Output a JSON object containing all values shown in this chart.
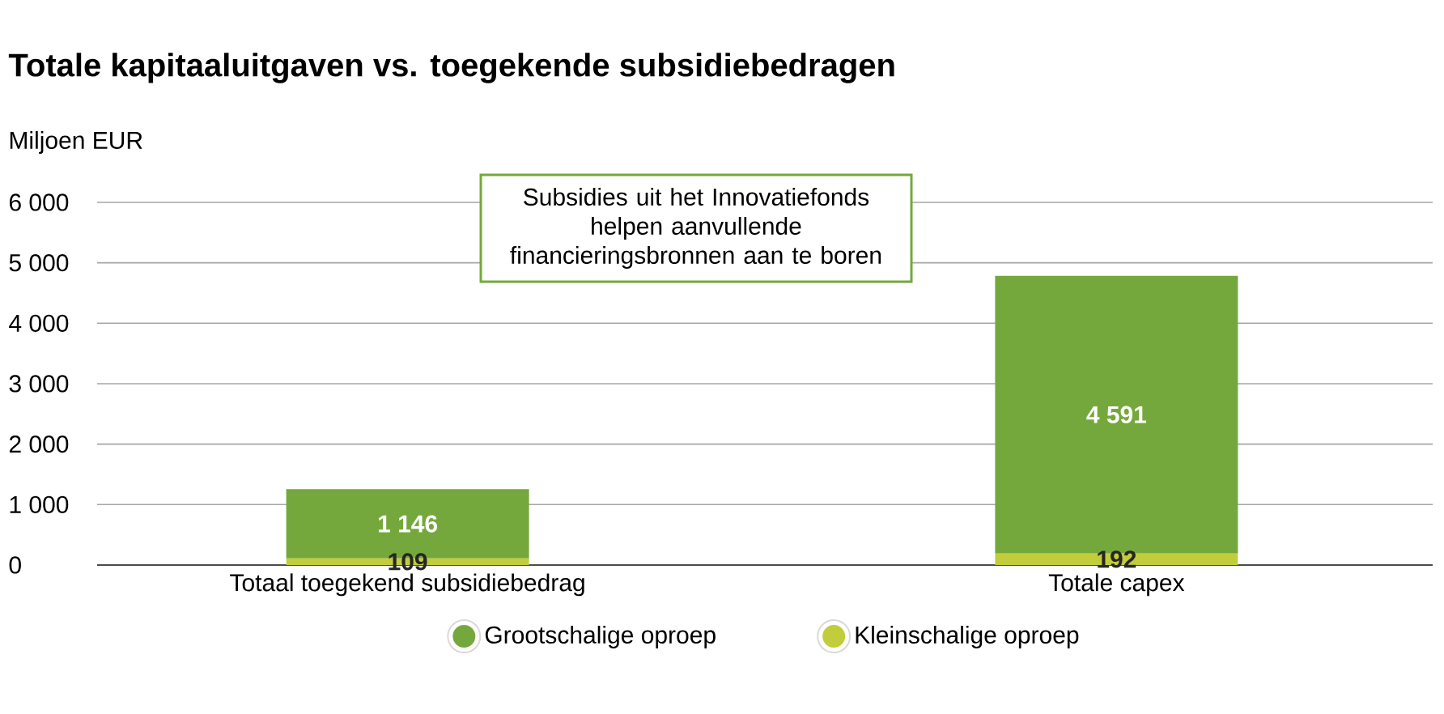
{
  "chart_data": {
    "type": "bar",
    "title": "Totale kapitaaluitgaven vs. toegekende subsidiebedragen",
    "ylabel": "Miljoen EUR",
    "categories": [
      "Totaal toegekend subsidiebedrag",
      "Totale capex"
    ],
    "stacked": true,
    "series": [
      {
        "name": "Kleinschalige oproep",
        "color": "#c1cd3a",
        "values": [
          109,
          192
        ],
        "value_labels": [
          "109",
          "192"
        ]
      },
      {
        "name": "Grootschalige oproep",
        "color": "#75a83c",
        "values": [
          1146,
          4591
        ],
        "value_labels": [
          "1 146",
          "4 591"
        ]
      }
    ],
    "ylim": [
      0,
      6000
    ],
    "yticks": [
      0,
      {
        "value": 1000,
        "label": "1 000"
      },
      {
        "value": 2000,
        "label": "2 000"
      },
      {
        "value": 3000,
        "label": "3 000"
      },
      {
        "value": 4000,
        "label": "4 000"
      },
      {
        "value": 5000,
        "label": "5 000"
      },
      {
        "value": 6000,
        "label": "6 000"
      }
    ],
    "grid": "y",
    "legend": "bottom",
    "annotations": [
      "Subsidies uit het Innovatiefonds helpen aanvullende financieringsbronnen aan te boren"
    ]
  }
}
